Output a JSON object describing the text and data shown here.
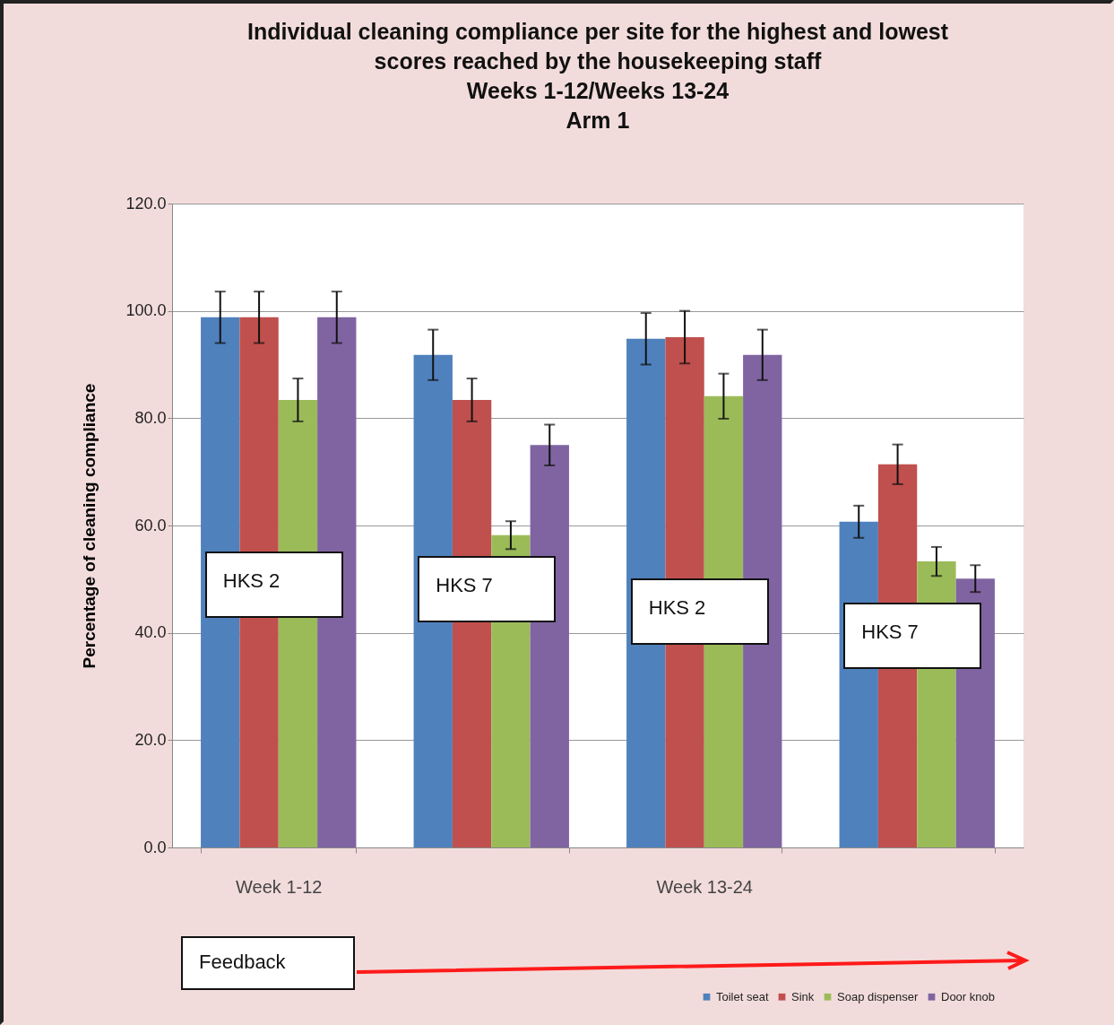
{
  "chart_data": {
    "type": "bar",
    "title": "Individual cleaning compliance per site for the highest and lowest\nscores reached by the housekeeping staff\nWeeks 1-12/Weeks 13-24\nArm 1",
    "ylabel": "Percentage of cleaning compliance",
    "categories": [
      "Week 1-12",
      null,
      "Week 13-24",
      null
    ],
    "series": [
      {
        "name": "Toilet seat",
        "color": "#4f81bd",
        "values": [
          98.8,
          91.8,
          94.8,
          60.7
        ],
        "errors": [
          4.8,
          4.7,
          4.8,
          3.0
        ]
      },
      {
        "name": "Sink",
        "color": "#c0504d",
        "values": [
          98.8,
          83.4,
          95.1,
          71.4
        ],
        "errors": [
          4.8,
          4.0,
          4.9,
          3.7
        ]
      },
      {
        "name": "Soap dispenser",
        "color": "#9bbb59",
        "values": [
          83.4,
          58.2,
          84.1,
          53.3
        ],
        "errors": [
          4.0,
          2.6,
          4.2,
          2.7
        ]
      },
      {
        "name": "Door knob",
        "color": "#8064a2",
        "values": [
          98.8,
          75.0,
          91.8,
          50.1
        ],
        "errors": [
          4.8,
          3.8,
          4.7,
          2.5
        ]
      }
    ],
    "ylim": [
      0,
      120
    ],
    "yticks": [
      {
        "value": 0,
        "label": "0.0"
      },
      {
        "value": 20,
        "label": "20.0"
      },
      {
        "value": 40,
        "label": "40.0"
      },
      {
        "value": 60,
        "label": "60.0"
      },
      {
        "value": 80,
        "label": "80.0"
      },
      {
        "value": 100,
        "label": "100.0"
      },
      {
        "value": 120,
        "label": "120.0"
      }
    ],
    "grid": "y",
    "legend": "bottom right",
    "annotations": [
      "HKS 2",
      "HKS 7",
      "HKS 2",
      "HKS 7",
      "Feedback"
    ]
  }
}
